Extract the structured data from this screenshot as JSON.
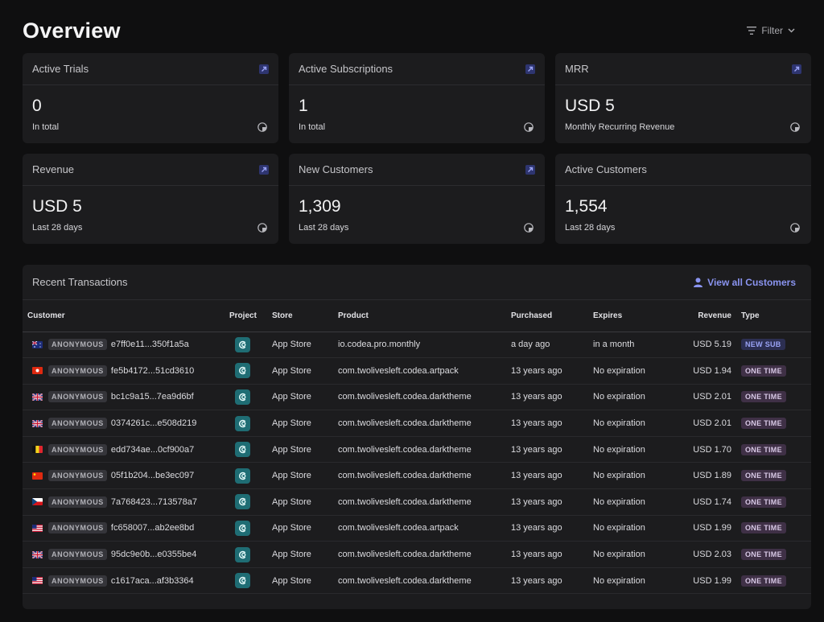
{
  "header": {
    "title": "Overview",
    "filter_label": "Filter"
  },
  "cards": [
    {
      "title": "Active Trials",
      "value": "0",
      "sub": "In total",
      "link": true
    },
    {
      "title": "Active Subscriptions",
      "value": "1",
      "sub": "In total",
      "link": true
    },
    {
      "title": "MRR",
      "value": "USD 5",
      "sub": "Monthly Recurring Revenue",
      "link": true
    },
    {
      "title": "Revenue",
      "value": "USD 5",
      "sub": "Last 28 days",
      "link": true
    },
    {
      "title": "New Customers",
      "value": "1,309",
      "sub": "Last 28 days",
      "link": true
    },
    {
      "title": "Active Customers",
      "value": "1,554",
      "sub": "Last 28 days",
      "link": false
    }
  ],
  "transactions": {
    "title": "Recent Transactions",
    "view_all_label": "View all Customers",
    "columns": [
      "Customer",
      "Project",
      "Store",
      "Product",
      "Purchased",
      "Expires",
      "Revenue",
      "Type"
    ],
    "anon_label": "ANONYMOUS",
    "rows": [
      {
        "flag": "au",
        "id": "e7ff0e11...350f1a5a",
        "store": "App Store",
        "product": "io.codea.pro.monthly",
        "purchased": "a day ago",
        "expires": "in a month",
        "revenue": "USD 5.19",
        "type": "NEW SUB",
        "type_kind": "new"
      },
      {
        "flag": "hk",
        "id": "fe5b4172...51cd3610",
        "store": "App Store",
        "product": "com.twolivesleft.codea.artpack",
        "purchased": "13 years ago",
        "expires": "No expiration",
        "revenue": "USD 1.94",
        "type": "ONE TIME",
        "type_kind": "one"
      },
      {
        "flag": "gb",
        "id": "bc1c9a15...7ea9d6bf",
        "store": "App Store",
        "product": "com.twolivesleft.codea.darktheme",
        "purchased": "13 years ago",
        "expires": "No expiration",
        "revenue": "USD 2.01",
        "type": "ONE TIME",
        "type_kind": "one"
      },
      {
        "flag": "gb",
        "id": "0374261c...e508d219",
        "store": "App Store",
        "product": "com.twolivesleft.codea.darktheme",
        "purchased": "13 years ago",
        "expires": "No expiration",
        "revenue": "USD 2.01",
        "type": "ONE TIME",
        "type_kind": "one"
      },
      {
        "flag": "be",
        "id": "edd734ae...0cf900a7",
        "store": "App Store",
        "product": "com.twolivesleft.codea.darktheme",
        "purchased": "13 years ago",
        "expires": "No expiration",
        "revenue": "USD 1.70",
        "type": "ONE TIME",
        "type_kind": "one"
      },
      {
        "flag": "cn",
        "id": "05f1b204...be3ec097",
        "store": "App Store",
        "product": "com.twolivesleft.codea.darktheme",
        "purchased": "13 years ago",
        "expires": "No expiration",
        "revenue": "USD 1.89",
        "type": "ONE TIME",
        "type_kind": "one"
      },
      {
        "flag": "cz",
        "id": "7a768423...713578a7",
        "store": "App Store",
        "product": "com.twolivesleft.codea.darktheme",
        "purchased": "13 years ago",
        "expires": "No expiration",
        "revenue": "USD 1.74",
        "type": "ONE TIME",
        "type_kind": "one"
      },
      {
        "flag": "us",
        "id": "fc658007...ab2ee8bd",
        "store": "App Store",
        "product": "com.twolivesleft.codea.artpack",
        "purchased": "13 years ago",
        "expires": "No expiration",
        "revenue": "USD 1.99",
        "type": "ONE TIME",
        "type_kind": "one"
      },
      {
        "flag": "gb",
        "id": "95dc9e0b...e0355be4",
        "store": "App Store",
        "product": "com.twolivesleft.codea.darktheme",
        "purchased": "13 years ago",
        "expires": "No expiration",
        "revenue": "USD 2.03",
        "type": "ONE TIME",
        "type_kind": "one"
      },
      {
        "flag": "us",
        "id": "c1617aca...af3b3364",
        "store": "App Store",
        "product": "com.twolivesleft.codea.darktheme",
        "purchased": "13 years ago",
        "expires": "No expiration",
        "revenue": "USD 1.99",
        "type": "ONE TIME",
        "type_kind": "one"
      }
    ]
  },
  "colors": {
    "background": "#0f0f10",
    "card": "#1c1c1e",
    "accent": "#8a94f0",
    "project_icon": "#1f6d74"
  }
}
